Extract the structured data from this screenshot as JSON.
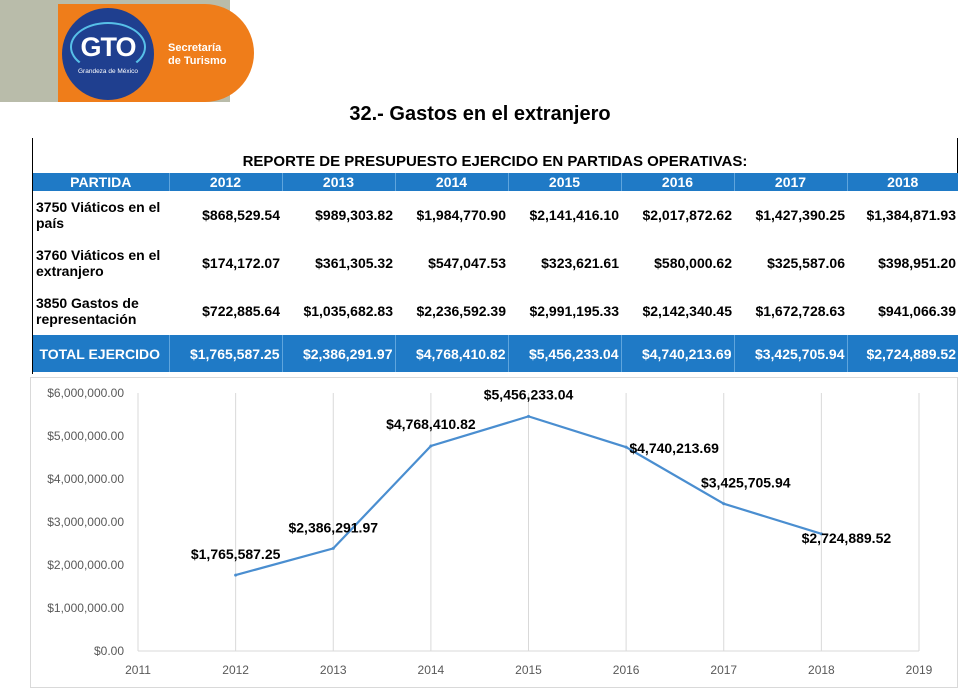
{
  "header": {
    "logo_text": "GTO",
    "logo_sub": "Grandeza de México",
    "org_name": "Secretaría\nde Turismo"
  },
  "title": "32.- Gastos en el extranjero",
  "table": {
    "caption": "REPORTE DE PRESUPUESTO EJERCIDO EN PARTIDAS OPERATIVAS:",
    "headers": [
      "PARTIDA",
      "2012",
      "2013",
      "2014",
      "2015",
      "2016",
      "2017",
      "2018"
    ],
    "rows": [
      {
        "label": "3750 Viáticos en el país",
        "values": [
          "$868,529.54",
          "$989,303.82",
          "$1,984,770.90",
          "$2,141,416.10",
          "$2,017,872.62",
          "$1,427,390.25",
          "$1,384,871.93"
        ]
      },
      {
        "label": "3760 Viáticos en el extranjero",
        "values": [
          "$174,172.07",
          "$361,305.32",
          "$547,047.53",
          "$323,621.61",
          "$580,000.62",
          "$325,587.06",
          "$398,951.20"
        ]
      },
      {
        "label": "3850 Gastos de representación",
        "values": [
          "$722,885.64",
          "$1,035,682.83",
          "$2,236,592.39",
          "$2,991,195.33",
          "$2,142,340.45",
          "$1,672,728.63",
          "$941,066.39"
        ]
      }
    ],
    "total": {
      "label": "TOTAL EJERCIDO",
      "values": [
        "$1,765,587.25",
        "$2,386,291.97",
        "$4,768,410.82",
        "$5,456,233.04",
        "$4,740,213.69",
        "$3,425,705.94",
        "$2,724,889.52"
      ]
    }
  },
  "chart_data": {
    "type": "line",
    "title": "",
    "xlabel": "",
    "ylabel": "",
    "x": [
      2012,
      2013,
      2014,
      2015,
      2016,
      2017,
      2018
    ],
    "values": [
      1765587.25,
      2386291.97,
      4768410.82,
      5456233.04,
      4740213.69,
      3425705.94,
      2724889.52
    ],
    "data_labels": [
      "$1,765,587.25",
      "$2,386,291.97",
      "$4,768,410.82",
      "$5,456,233.04",
      "$4,740,213.69",
      "$3,425,705.94",
      "$2,724,889.52"
    ],
    "xlim": [
      2011,
      2019
    ],
    "x_ticks": [
      "2011",
      "2012",
      "2013",
      "2014",
      "2015",
      "2016",
      "2017",
      "2018",
      "2019"
    ],
    "ylim": [
      0,
      6000000
    ],
    "y_ticks": [
      "$0.00",
      "$1,000,000.00",
      "$2,000,000.00",
      "$3,000,000.00",
      "$4,000,000.00",
      "$5,000,000.00",
      "$6,000,000.00"
    ],
    "grid": "vertical",
    "line_color": "#4a8ed0"
  }
}
